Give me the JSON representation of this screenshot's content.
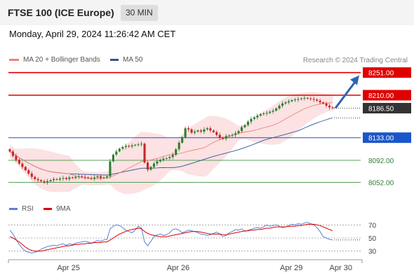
{
  "header": {
    "title": "FTSE 100 (ICE Europe)",
    "timeframe": "30 MIN",
    "datetime": "Monday, April 29, 2024 11:26:42 AM CET"
  },
  "legend": {
    "ma20_label": "MA 20 + Bollinger Bands",
    "ma50_label": "MA 50",
    "credit": "Research © 2024 Trading Central",
    "rsi_label": "RSI",
    "ma9_label": "9MA"
  },
  "colors": {
    "ma20": "#f08080",
    "ma50": "#2b5797",
    "bollinger_fill": "#fbd5d5",
    "up_candle": "#2e7d32",
    "down_candle": "#c62828",
    "resistance": "#e00000",
    "support_blue": "#1a56c8",
    "support_green": "#5aa05a",
    "last_price_bg": "#333333",
    "rsi_line": "#5b7fd6",
    "rsi_ma": "#e00000",
    "arrow": "#2f63b0"
  },
  "chart_data": {
    "type": "candlestick",
    "instrument": "FTSE 100 (ICE Europe)",
    "interval": "30 MIN",
    "ylim": [
      8040,
      8262
    ],
    "x_ticks": [
      "Apr 25",
      "Apr 26",
      "Apr 29",
      "Apr 30"
    ],
    "tick_positions": [
      0.17,
      0.48,
      0.8,
      0.94
    ],
    "last_price": 8186.5,
    "levels": [
      {
        "label": "8251.00",
        "value": 8251,
        "kind": "resistance"
      },
      {
        "label": "8210.00",
        "value": 8210,
        "kind": "resistance"
      },
      {
        "label": "8133.00",
        "value": 8133,
        "kind": "pivot"
      },
      {
        "label": "8092.00",
        "value": 8092,
        "kind": "support"
      },
      {
        "label": "8052.00",
        "value": 8052,
        "kind": "support"
      }
    ],
    "last_price_label": "8186.50",
    "forecast_target": 8251,
    "close_series": [
      8108,
      8100,
      8093,
      8086,
      8080,
      8074,
      8068,
      8062,
      8058,
      8056,
      8054,
      8052,
      8054,
      8056,
      8058,
      8057,
      8059,
      8060,
      8058,
      8061,
      8060,
      8062,
      8063,
      8062,
      8061,
      8060,
      8059,
      8061,
      8063,
      8060,
      8061,
      8063,
      8090,
      8102,
      8108,
      8113,
      8116,
      8118,
      8117,
      8119,
      8120,
      8121,
      8122,
      8088,
      8075,
      8080,
      8086,
      8090,
      8093,
      8095,
      8096,
      8098,
      8102,
      8112,
      8124,
      8134,
      8150,
      8148,
      8142,
      8144,
      8146,
      8144,
      8148,
      8150,
      8146,
      8143,
      8138,
      8133,
      8131,
      8136,
      8137,
      8138,
      8141,
      8145,
      8152,
      8156,
      8162,
      8167,
      8170,
      8173,
      8176,
      8177,
      8178,
      8180,
      8182,
      8186,
      8191,
      8195,
      8197,
      8199,
      8201,
      8202,
      8203,
      8204,
      8205,
      8204,
      8203,
      8202,
      8200,
      8197,
      8195,
      8191,
      8188,
      8186.5
    ],
    "rsi": {
      "ylim": [
        20,
        80
      ],
      "levels": [
        70,
        50,
        30
      ],
      "values": [
        62,
        56,
        48,
        40,
        34,
        30,
        28,
        27,
        28,
        30,
        33,
        35,
        37,
        38,
        39,
        38,
        40,
        41,
        39,
        41,
        40,
        42,
        43,
        44,
        45,
        44,
        42,
        44,
        46,
        45,
        47,
        48,
        64,
        68,
        70,
        69,
        66,
        62,
        60,
        58,
        62,
        68,
        65,
        44,
        38,
        45,
        52,
        55,
        56,
        54,
        55,
        58,
        63,
        64,
        62,
        58,
        60,
        62,
        61,
        60,
        58,
        56,
        55,
        54,
        55,
        57,
        59,
        56,
        52,
        54,
        58,
        60,
        63,
        62,
        64,
        60,
        62,
        63,
        65,
        66,
        65,
        67,
        70,
        68,
        69,
        70,
        68,
        66,
        67,
        69,
        71,
        70,
        72,
        71,
        73,
        74,
        72,
        70,
        66,
        60,
        52,
        50,
        48,
        47
      ],
      "ma9": [
        52,
        50,
        47,
        44,
        40,
        36,
        33,
        31,
        30,
        30,
        30,
        31,
        32,
        33,
        34,
        35,
        36,
        37,
        38,
        38,
        39,
        40,
        40,
        41,
        41,
        42,
        42,
        43,
        43,
        43,
        44,
        44,
        47,
        50,
        53,
        56,
        58,
        60,
        62,
        63,
        64,
        65,
        64,
        60,
        57,
        55,
        54,
        53,
        52,
        52,
        52,
        53,
        54,
        55,
        56,
        57,
        58,
        59,
        60,
        60,
        60,
        59,
        58,
        57,
        56,
        56,
        56,
        56,
        55,
        55,
        56,
        57,
        58,
        59,
        60,
        61,
        61,
        62,
        62,
        63,
        63,
        64,
        65,
        65,
        66,
        67,
        67,
        67,
        67,
        68,
        68,
        68,
        69,
        69,
        70,
        71,
        71,
        71,
        70,
        69,
        67,
        65,
        63,
        61
      ]
    },
    "rsi_axis_labels": [
      "70",
      "50",
      "30"
    ]
  }
}
